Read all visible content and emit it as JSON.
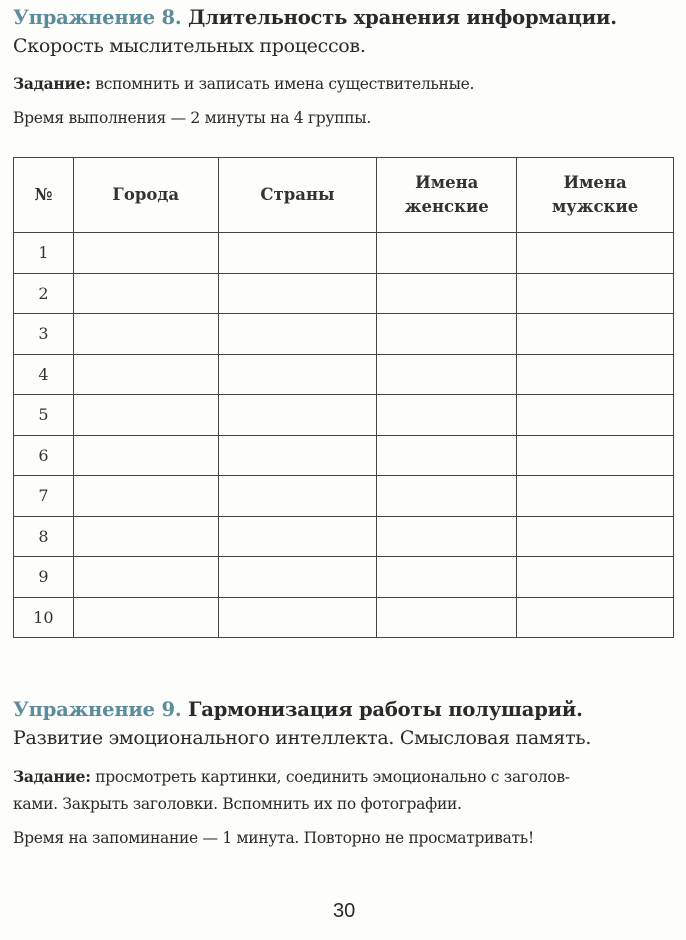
{
  "exercise8": {
    "label": "Упражнение 8.",
    "title": "Длительность хранения информации.",
    "subtitle": "Скорость мыслительных процессов.",
    "task_label": "Задание:",
    "task_text": "вспомнить и записать имена существительные.",
    "time": "Время выполнения — 2 минуты на 4 группы."
  },
  "table": {
    "headers": [
      "№",
      "Города",
      "Страны",
      "Имена женские",
      "Имена мужские"
    ],
    "rows": [
      "1",
      "2",
      "3",
      "4",
      "5",
      "6",
      "7",
      "8",
      "9",
      "10"
    ]
  },
  "exercise9": {
    "label": "Упражнение 9.",
    "title": "Гармонизация работы полушарий.",
    "subtitle": "Развитие эмоционального интеллекта. Смысловая память.",
    "task_label": "Задание:",
    "task_line1": "просмотреть картинки, соединить эмоционально с заголов-",
    "task_line2": "ками. Закрыть заголовки. Вспомнить их по фотографии.",
    "time": "Время на запоминание — 1 минута. Повторно не просматривать!"
  },
  "page_number": "30",
  "colors": {
    "exercise_label": "#5b8c9c",
    "text": "#2a2a2a"
  }
}
